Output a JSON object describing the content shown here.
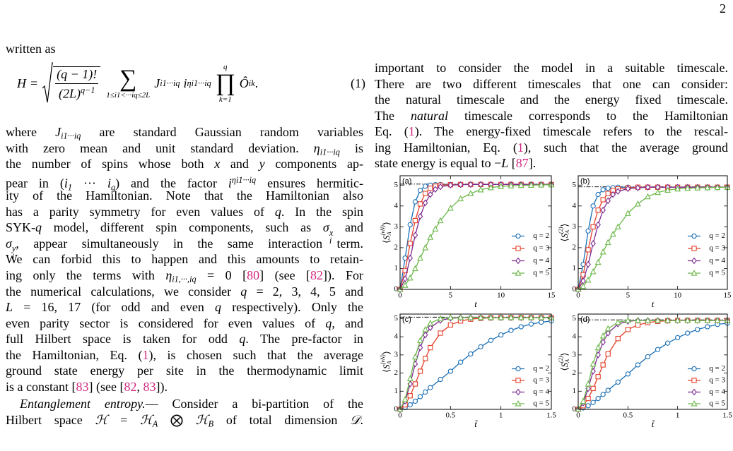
{
  "page_number": "2",
  "equation": {
    "lhs": "H",
    "eq": "=",
    "num": "(q − 1)!",
    "den": "(2L)",
    "den_sup": "q−1",
    "sum": "∑",
    "sum_sub": "1≤i1<···iq≤2L",
    "term": "J",
    "term_sub": "i1···iq",
    "factor": "i",
    "factor_sup": "ηi1···iq",
    "prod": "∏",
    "prod_sup": "q",
    "prod_sub": "k=1",
    "op": "Ô",
    "op_sub": "ik",
    "end": ".",
    "number": "(1)"
  },
  "left_column": {
    "paragraphs": [
      [
        [
          "written as"
        ]
      ],
      [
        [
          "where ",
          {
            "i": "J",
            "sub": "i1···iq"
          },
          " are standard Gaussian random variables"
        ],
        [
          "with zero mean and unit standard deviation. ",
          {
            "i": "η",
            "sub": "i1···iq"
          },
          " is"
        ],
        [
          "the number of spins whose both ",
          {
            "i": "x"
          },
          " and ",
          {
            "i": "y"
          },
          " components ap-"
        ],
        [
          "pear in (",
          {
            "i": "i",
            "sub": "1"
          },
          " ··· ",
          {
            "i": "i",
            "sub": "q"
          },
          ") and the factor ",
          {
            "i": "i",
            "sup": "ηi1···iq"
          },
          " ensures hermitic-"
        ],
        [
          "ity of the Hamiltonian. Note that the Hamiltonian also"
        ],
        [
          "has a parity symmetry for even values of ",
          {
            "i": "q"
          },
          ". In the spin"
        ],
        [
          "SYK-",
          {
            "i": "q"
          },
          " model, different spin components, such as ",
          {
            "i": "σ",
            "sub": "i",
            "sup": "x"
          },
          " and"
        ],
        [
          {
            "i": "σ",
            "sub": "i",
            "sup": "y"
          },
          ", appear simultaneously in the same interaction term."
        ],
        [
          "We can forbid this to happen and this amounts to retain-"
        ],
        [
          "ing only the terms with ",
          {
            "i": "η",
            "sub": "i1,···,iq"
          },
          " = 0 [",
          {
            "c": "80"
          },
          "] (see [",
          {
            "c": "82"
          },
          "]). For"
        ],
        [
          "the numerical calculations, we consider ",
          {
            "i": "q"
          },
          " = 2, 3, 4, 5 and"
        ],
        [
          {
            "i": "L"
          },
          " = 16, 17 (for odd and even ",
          {
            "i": "q"
          },
          " respectively). Only the"
        ],
        [
          "even parity sector is considered for even values of ",
          {
            "i": "q"
          },
          ", and"
        ],
        [
          "full Hilbert space is taken for odd ",
          {
            "i": "q"
          },
          ". The pre-factor in"
        ],
        [
          "the Hamiltonian, Eq. (",
          {
            "c": "1"
          },
          "), is chosen such that the average"
        ],
        [
          "ground state energy per site in the thermodynamic limit"
        ],
        [
          "is a constant [",
          {
            "c": "83"
          },
          "] (see [",
          {
            "c": "82"
          },
          ", ",
          {
            "c": "83"
          },
          "])."
        ]
      ],
      [
        [
          {
            "i": "Entanglement entropy."
          },
          "— Consider a bi-partition of the"
        ],
        [
          "Hilbert space ",
          {
            "i": "ℋ"
          },
          " = ",
          {
            "i": "ℋ",
            "sub": "A"
          },
          " ⨂ ",
          {
            "i": "ℋ",
            "sub": "B"
          },
          " of total dimension ",
          {
            "i": "𝒟"
          },
          "."
        ]
      ]
    ]
  },
  "right_column": {
    "paragraphs": [
      [
        [
          "important to consider the model in a suitable timescale."
        ],
        [
          "There are two different timescales that one can consider:"
        ],
        [
          "the natural timescale and the energy fixed timescale."
        ],
        [
          "The ",
          {
            "i": "natural"
          },
          " timescale corresponds to the Hamiltonian"
        ],
        [
          "Eq. (",
          {
            "c": "1"
          },
          "). The energy-fixed timescale refers to the rescal-"
        ],
        [
          "ing Hamiltonian, Eq. (",
          {
            "c": "1"
          },
          "), such that the average ground"
        ],
        [
          "state energy is equal to −",
          {
            "i": "L"
          },
          " [",
          {
            "c": "87"
          },
          "]."
        ]
      ]
    ]
  },
  "chart_data": [
    {
      "type": "line",
      "panel_label": "(a)",
      "xlabel": "t",
      "ylabel": {
        "open": "⟨",
        "base": "S",
        "sub": "A",
        "sup": "(vN)",
        "close": "⟩"
      },
      "xlim": [
        0,
        15
      ],
      "xticks": [
        0,
        5,
        10,
        15
      ],
      "ylim": [
        0,
        5.45
      ],
      "yticks": [
        0,
        1,
        2,
        3,
        4,
        5
      ],
      "reference_line": 5.05,
      "x": [
        0,
        0.5,
        1,
        1.5,
        2,
        2.5,
        3,
        3.5,
        4,
        5,
        6,
        7,
        8,
        9,
        10,
        11,
        12,
        13,
        14,
        15
      ],
      "series": [
        {
          "name": "q = 2",
          "color": "#1a6fb5",
          "marker": "circle",
          "values": [
            0,
            1.5,
            3.1,
            4.2,
            4.75,
            4.95,
            5.0,
            5.02,
            5.03,
            5.03,
            5.03,
            5.03,
            5.03,
            5.03,
            5.03,
            5.03,
            5.03,
            5.03,
            5.03,
            5.03
          ]
        },
        {
          "name": "q = 3",
          "color": "#e4412b",
          "marker": "square",
          "values": [
            0,
            0.9,
            2.2,
            3.3,
            4.1,
            4.6,
            4.85,
            4.95,
            5.0,
            5.02,
            5.03,
            5.03,
            5.03,
            5.03,
            5.03,
            5.03,
            5.03,
            5.03,
            5.03,
            5.03
          ]
        },
        {
          "name": "q = 4",
          "color": "#7d2a8f",
          "marker": "diamond",
          "values": [
            0,
            0.5,
            1.5,
            2.6,
            3.5,
            4.15,
            4.55,
            4.8,
            4.92,
            5.0,
            5.02,
            5.03,
            5.03,
            5.03,
            5.03,
            5.03,
            5.03,
            5.03,
            5.03,
            5.03
          ]
        },
        {
          "name": "q = 5",
          "color": "#6cb84a",
          "marker": "triangle",
          "values": [
            0,
            0.2,
            0.55,
            1.0,
            1.5,
            2.0,
            2.5,
            2.9,
            3.3,
            3.9,
            4.35,
            4.6,
            4.78,
            4.88,
            4.94,
            4.97,
            4.99,
            5.0,
            5.01,
            5.02
          ]
        }
      ]
    },
    {
      "type": "line",
      "panel_label": "(b)",
      "xlabel": "t",
      "ylabel": {
        "open": "⟨",
        "base": "S",
        "sub": "A",
        "sup": "(2)",
        "close": "⟩"
      },
      "xlim": [
        0,
        15
      ],
      "xticks": [
        0,
        5,
        10,
        15
      ],
      "ylim": [
        0,
        5.45
      ],
      "yticks": [
        0,
        1,
        2,
        3,
        4,
        5
      ],
      "reference_line": 4.92,
      "x": [
        0,
        0.5,
        1,
        1.5,
        2,
        2.5,
        3,
        3.5,
        4,
        5,
        6,
        7,
        8,
        9,
        10,
        11,
        12,
        13,
        14,
        15
      ],
      "series": [
        {
          "name": "q = 2",
          "color": "#1a6fb5",
          "marker": "circle",
          "values": [
            0,
            1.2,
            2.8,
            4.0,
            4.55,
            4.78,
            4.85,
            4.88,
            4.9,
            4.9,
            4.9,
            4.9,
            4.9,
            4.9,
            4.9,
            4.9,
            4.9,
            4.9,
            4.9,
            4.9
          ]
        },
        {
          "name": "q = 3",
          "color": "#e4412b",
          "marker": "square",
          "values": [
            0,
            0.7,
            1.9,
            3.0,
            3.8,
            4.3,
            4.6,
            4.75,
            4.82,
            4.87,
            4.9,
            4.9,
            4.9,
            4.9,
            4.9,
            4.9,
            4.9,
            4.9,
            4.9,
            4.9
          ]
        },
        {
          "name": "q = 4",
          "color": "#7d2a8f",
          "marker": "diamond",
          "values": [
            0,
            0.4,
            1.2,
            2.2,
            3.1,
            3.8,
            4.25,
            4.55,
            4.7,
            4.83,
            4.87,
            4.9,
            4.9,
            4.9,
            4.9,
            4.9,
            4.9,
            4.9,
            4.9,
            4.9
          ]
        },
        {
          "name": "q = 5",
          "color": "#6cb84a",
          "marker": "triangle",
          "values": [
            0,
            0.15,
            0.45,
            0.85,
            1.3,
            1.8,
            2.25,
            2.65,
            3.0,
            3.65,
            4.1,
            4.45,
            4.65,
            4.76,
            4.82,
            4.85,
            4.87,
            4.88,
            4.89,
            4.9
          ]
        }
      ]
    },
    {
      "type": "line",
      "panel_label": "(c)",
      "xlabel": "t̃",
      "ylabel": {
        "open": "⟨",
        "base": "S",
        "sub": "A",
        "sup": "(vN)",
        "close": "⟩"
      },
      "xlim": [
        0,
        1.5
      ],
      "xticks": [
        0,
        0.5,
        1,
        1.5
      ],
      "ylim": [
        0,
        5.25
      ],
      "yticks": [
        0,
        1,
        2,
        3,
        4,
        5
      ],
      "reference_line": 5.08,
      "x": [
        0,
        0.05,
        0.1,
        0.15,
        0.2,
        0.25,
        0.3,
        0.4,
        0.5,
        0.6,
        0.7,
        0.8,
        0.9,
        1,
        1.1,
        1.2,
        1.3,
        1.4,
        1.5
      ],
      "series": [
        {
          "name": "q = 2",
          "color": "#1a6fb5",
          "marker": "circle",
          "values": [
            0,
            0.1,
            0.25,
            0.45,
            0.7,
            0.95,
            1.2,
            1.65,
            2.1,
            2.6,
            3.05,
            3.45,
            3.8,
            4.1,
            4.35,
            4.55,
            4.7,
            4.8,
            4.87
          ]
        },
        {
          "name": "q = 3",
          "color": "#e4412b",
          "marker": "square",
          "values": [
            0,
            0.25,
            0.75,
            1.4,
            2.1,
            2.8,
            3.4,
            4.2,
            4.65,
            4.87,
            4.97,
            5.02,
            5.04,
            5.05,
            5.05,
            5.05,
            5.05,
            5.05,
            5.05
          ]
        },
        {
          "name": "q = 4",
          "color": "#7d2a8f",
          "marker": "diamond",
          "values": [
            0,
            0.45,
            1.4,
            2.5,
            3.4,
            4.1,
            4.5,
            4.9,
            5.02,
            5.05,
            5.05,
            5.05,
            5.05,
            5.05,
            5.05,
            5.05,
            5.05,
            5.05,
            5.05
          ]
        },
        {
          "name": "q = 5",
          "color": "#6cb84a",
          "marker": "triangle",
          "values": [
            0,
            0.55,
            1.7,
            2.9,
            3.8,
            4.4,
            4.75,
            5.0,
            5.06,
            5.06,
            5.06,
            5.06,
            5.06,
            5.06,
            5.06,
            5.06,
            5.06,
            5.06,
            5.06
          ]
        }
      ]
    },
    {
      "type": "line",
      "panel_label": "(d)",
      "xlabel": "t̃",
      "ylabel": {
        "open": "⟨",
        "base": "S",
        "sub": "A",
        "sup": "(2)",
        "close": "⟩"
      },
      "xlim": [
        0,
        1.5
      ],
      "xticks": [
        0,
        0.5,
        1,
        1.5
      ],
      "ylim": [
        0,
        5.25
      ],
      "yticks": [
        0,
        1,
        2,
        3,
        4,
        5
      ],
      "reference_line": 4.93,
      "x": [
        0,
        0.05,
        0.1,
        0.15,
        0.2,
        0.25,
        0.3,
        0.4,
        0.5,
        0.6,
        0.7,
        0.8,
        0.9,
        1,
        1.1,
        1.2,
        1.3,
        1.4,
        1.5
      ],
      "series": [
        {
          "name": "q = 2",
          "color": "#1a6fb5",
          "marker": "circle",
          "values": [
            0,
            0.08,
            0.2,
            0.38,
            0.6,
            0.82,
            1.05,
            1.5,
            1.95,
            2.45,
            2.9,
            3.3,
            3.65,
            3.95,
            4.2,
            4.4,
            4.55,
            4.68,
            4.75
          ]
        },
        {
          "name": "q = 3",
          "color": "#e4412b",
          "marker": "square",
          "values": [
            0,
            0.2,
            0.6,
            1.15,
            1.8,
            2.45,
            3.05,
            3.9,
            4.4,
            4.65,
            4.78,
            4.85,
            4.88,
            4.9,
            4.9,
            4.9,
            4.9,
            4.9,
            4.9
          ]
        },
        {
          "name": "q = 4",
          "color": "#7d2a8f",
          "marker": "diamond",
          "values": [
            0,
            0.35,
            1.15,
            2.1,
            3.0,
            3.7,
            4.2,
            4.7,
            4.85,
            4.9,
            4.9,
            4.9,
            4.9,
            4.9,
            4.9,
            4.9,
            4.9,
            4.9,
            4.9
          ]
        },
        {
          "name": "q = 5",
          "color": "#6cb84a",
          "marker": "triangle",
          "values": [
            0,
            0.45,
            1.4,
            2.5,
            3.4,
            4.05,
            4.45,
            4.8,
            4.9,
            4.9,
            4.9,
            4.9,
            4.9,
            4.9,
            4.9,
            4.9,
            4.9,
            4.9,
            4.9
          ]
        }
      ]
    }
  ]
}
